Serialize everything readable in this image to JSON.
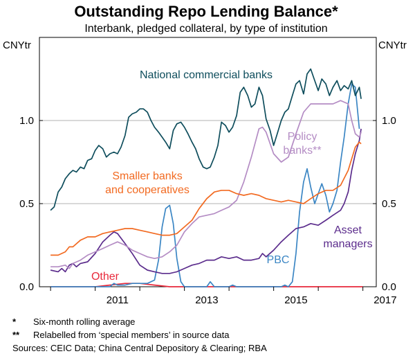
{
  "chart_data": {
    "type": "line",
    "title": "Outstanding Repo Lending Balance*",
    "subtitle": "Interbank, pledged collateral, by type of institution",
    "ylabel_left": "CNYtr",
    "ylabel_right": "CNYtr",
    "ylim": [
      0,
      1.5
    ],
    "xlim": [
      2009.75,
      2017.3
    ],
    "x_ticks": [
      "2011",
      "2013",
      "2015",
      "2017"
    ],
    "y_ticks": [
      "0.0",
      "0.5",
      "1.0"
    ],
    "grid": true,
    "series": [
      {
        "name": "National commercial banks",
        "label_lines": [
          "National commercial banks"
        ],
        "color": "#0e4d5c",
        "points": [
          [
            2010.0,
            0.46
          ],
          [
            2010.08,
            0.48
          ],
          [
            2010.17,
            0.57
          ],
          [
            2010.25,
            0.6
          ],
          [
            2010.33,
            0.65
          ],
          [
            2010.42,
            0.68
          ],
          [
            2010.5,
            0.7
          ],
          [
            2010.58,
            0.69
          ],
          [
            2010.67,
            0.72
          ],
          [
            2010.75,
            0.71
          ],
          [
            2010.83,
            0.76
          ],
          [
            2010.92,
            0.77
          ],
          [
            2011.0,
            0.82
          ],
          [
            2011.08,
            0.85
          ],
          [
            2011.17,
            0.83
          ],
          [
            2011.25,
            0.78
          ],
          [
            2011.33,
            0.8
          ],
          [
            2011.42,
            0.81
          ],
          [
            2011.5,
            0.8
          ],
          [
            2011.58,
            0.84
          ],
          [
            2011.67,
            0.91
          ],
          [
            2011.75,
            1.02
          ],
          [
            2011.83,
            1.04
          ],
          [
            2011.92,
            1.05
          ],
          [
            2012.0,
            1.07
          ],
          [
            2012.08,
            1.07
          ],
          [
            2012.17,
            1.05
          ],
          [
            2012.25,
            1.0
          ],
          [
            2012.33,
            0.96
          ],
          [
            2012.42,
            0.93
          ],
          [
            2012.5,
            0.9
          ],
          [
            2012.58,
            0.87
          ],
          [
            2012.67,
            0.83
          ],
          [
            2012.75,
            0.94
          ],
          [
            2012.83,
            0.98
          ],
          [
            2012.92,
            0.99
          ],
          [
            2013.0,
            0.96
          ],
          [
            2013.08,
            0.92
          ],
          [
            2013.17,
            0.87
          ],
          [
            2013.25,
            0.83
          ],
          [
            2013.33,
            0.77
          ],
          [
            2013.42,
            0.72
          ],
          [
            2013.5,
            0.71
          ],
          [
            2013.58,
            0.72
          ],
          [
            2013.67,
            0.78
          ],
          [
            2013.75,
            0.85
          ],
          [
            2013.83,
            0.99
          ],
          [
            2013.92,
            0.97
          ],
          [
            2014.0,
            0.93
          ],
          [
            2014.08,
            0.96
          ],
          [
            2014.17,
            1.03
          ],
          [
            2014.25,
            1.17
          ],
          [
            2014.33,
            1.2
          ],
          [
            2014.42,
            1.15
          ],
          [
            2014.5,
            1.08
          ],
          [
            2014.58,
            1.1
          ],
          [
            2014.67,
            1.2
          ],
          [
            2014.75,
            1.15
          ],
          [
            2014.83,
            1.01
          ],
          [
            2014.92,
            0.94
          ],
          [
            2015.0,
            0.85
          ],
          [
            2015.08,
            0.92
          ],
          [
            2015.17,
            1.0
          ],
          [
            2015.25,
            1.05
          ],
          [
            2015.33,
            1.07
          ],
          [
            2015.42,
            1.15
          ],
          [
            2015.5,
            1.22
          ],
          [
            2015.58,
            1.24
          ],
          [
            2015.67,
            1.16
          ],
          [
            2015.75,
            1.28
          ],
          [
            2015.83,
            1.31
          ],
          [
            2015.92,
            1.24
          ],
          [
            2016.0,
            1.18
          ],
          [
            2016.08,
            1.25
          ],
          [
            2016.17,
            1.22
          ],
          [
            2016.25,
            1.15
          ],
          [
            2016.33,
            1.2
          ],
          [
            2016.42,
            1.24
          ],
          [
            2016.5,
            1.18
          ],
          [
            2016.58,
            1.21
          ],
          [
            2016.67,
            1.19
          ],
          [
            2016.75,
            1.24
          ],
          [
            2016.83,
            1.15
          ],
          [
            2016.92,
            1.2
          ],
          [
            2016.96,
            1.13
          ]
        ]
      },
      {
        "name": "Smaller banks and cooperatives",
        "label_lines": [
          "Smaller banks",
          "and cooperatives"
        ],
        "color": "#f26a21",
        "points": [
          [
            2010.0,
            0.19
          ],
          [
            2010.17,
            0.19
          ],
          [
            2010.33,
            0.21
          ],
          [
            2010.42,
            0.24
          ],
          [
            2010.5,
            0.24
          ],
          [
            2010.67,
            0.28
          ],
          [
            2010.83,
            0.3
          ],
          [
            2011.0,
            0.3
          ],
          [
            2011.17,
            0.32
          ],
          [
            2011.33,
            0.33
          ],
          [
            2011.5,
            0.34
          ],
          [
            2011.67,
            0.35
          ],
          [
            2011.83,
            0.35
          ],
          [
            2012.0,
            0.34
          ],
          [
            2012.17,
            0.33
          ],
          [
            2012.33,
            0.32
          ],
          [
            2012.5,
            0.31
          ],
          [
            2012.67,
            0.31
          ],
          [
            2012.83,
            0.32
          ],
          [
            2013.0,
            0.36
          ],
          [
            2013.17,
            0.4
          ],
          [
            2013.33,
            0.47
          ],
          [
            2013.5,
            0.53
          ],
          [
            2013.67,
            0.57
          ],
          [
            2013.83,
            0.58
          ],
          [
            2014.0,
            0.58
          ],
          [
            2014.17,
            0.56
          ],
          [
            2014.33,
            0.55
          ],
          [
            2014.5,
            0.56
          ],
          [
            2014.67,
            0.55
          ],
          [
            2014.83,
            0.53
          ],
          [
            2015.0,
            0.52
          ],
          [
            2015.17,
            0.51
          ],
          [
            2015.33,
            0.52
          ],
          [
            2015.5,
            0.51
          ],
          [
            2015.67,
            0.5
          ],
          [
            2015.83,
            0.53
          ],
          [
            2016.0,
            0.56
          ],
          [
            2016.17,
            0.58
          ],
          [
            2016.33,
            0.58
          ],
          [
            2016.5,
            0.61
          ],
          [
            2016.67,
            0.7
          ],
          [
            2016.75,
            0.77
          ],
          [
            2016.83,
            0.84
          ],
          [
            2016.92,
            0.87
          ],
          [
            2016.96,
            0.86
          ]
        ]
      },
      {
        "name": "Policy banks**",
        "label_lines": [
          "Policy",
          "banks**"
        ],
        "color": "#b48cc4",
        "points": [
          [
            2010.0,
            0.12
          ],
          [
            2010.17,
            0.12
          ],
          [
            2010.33,
            0.13
          ],
          [
            2010.42,
            0.11
          ],
          [
            2010.5,
            0.14
          ],
          [
            2010.67,
            0.16
          ],
          [
            2010.83,
            0.19
          ],
          [
            2011.0,
            0.21
          ],
          [
            2011.17,
            0.23
          ],
          [
            2011.33,
            0.25
          ],
          [
            2011.5,
            0.27
          ],
          [
            2011.67,
            0.25
          ],
          [
            2011.83,
            0.22
          ],
          [
            2012.0,
            0.2
          ],
          [
            2012.17,
            0.18
          ],
          [
            2012.33,
            0.17
          ],
          [
            2012.5,
            0.18
          ],
          [
            2012.67,
            0.21
          ],
          [
            2012.83,
            0.25
          ],
          [
            2013.0,
            0.33
          ],
          [
            2013.17,
            0.38
          ],
          [
            2013.33,
            0.42
          ],
          [
            2013.5,
            0.43
          ],
          [
            2013.67,
            0.44
          ],
          [
            2013.83,
            0.46
          ],
          [
            2014.0,
            0.48
          ],
          [
            2014.17,
            0.52
          ],
          [
            2014.33,
            0.63
          ],
          [
            2014.5,
            0.78
          ],
          [
            2014.67,
            0.95
          ],
          [
            2014.75,
            0.96
          ],
          [
            2014.83,
            0.93
          ],
          [
            2015.0,
            0.8
          ],
          [
            2015.17,
            0.75
          ],
          [
            2015.33,
            0.78
          ],
          [
            2015.5,
            0.92
          ],
          [
            2015.67,
            1.05
          ],
          [
            2015.83,
            1.1
          ],
          [
            2016.0,
            1.1
          ],
          [
            2016.17,
            1.1
          ],
          [
            2016.33,
            1.1
          ],
          [
            2016.5,
            1.12
          ],
          [
            2016.67,
            1.1
          ],
          [
            2016.75,
            1.0
          ],
          [
            2016.83,
            0.92
          ],
          [
            2016.92,
            0.9
          ],
          [
            2016.96,
            0.93
          ]
        ]
      },
      {
        "name": "Asset managers",
        "label_lines": [
          "Asset",
          "managers"
        ],
        "color": "#5b2c8c",
        "points": [
          [
            2010.0,
            0.1
          ],
          [
            2010.17,
            0.09
          ],
          [
            2010.25,
            0.11
          ],
          [
            2010.33,
            0.09
          ],
          [
            2010.42,
            0.13
          ],
          [
            2010.5,
            0.14
          ],
          [
            2010.58,
            0.12
          ],
          [
            2010.67,
            0.14
          ],
          [
            2010.83,
            0.15
          ],
          [
            2011.0,
            0.2
          ],
          [
            2011.17,
            0.27
          ],
          [
            2011.33,
            0.31
          ],
          [
            2011.42,
            0.33
          ],
          [
            2011.5,
            0.32
          ],
          [
            2011.67,
            0.26
          ],
          [
            2011.83,
            0.2
          ],
          [
            2012.0,
            0.13
          ],
          [
            2012.17,
            0.1
          ],
          [
            2012.33,
            0.09
          ],
          [
            2012.5,
            0.08
          ],
          [
            2012.67,
            0.08
          ],
          [
            2012.83,
            0.09
          ],
          [
            2013.0,
            0.11
          ],
          [
            2013.17,
            0.13
          ],
          [
            2013.33,
            0.14
          ],
          [
            2013.5,
            0.16
          ],
          [
            2013.67,
            0.16
          ],
          [
            2013.83,
            0.18
          ],
          [
            2014.0,
            0.17
          ],
          [
            2014.17,
            0.18
          ],
          [
            2014.33,
            0.16
          ],
          [
            2014.5,
            0.16
          ],
          [
            2014.67,
            0.17
          ],
          [
            2014.75,
            0.2
          ],
          [
            2014.83,
            0.18
          ],
          [
            2015.0,
            0.22
          ],
          [
            2015.17,
            0.27
          ],
          [
            2015.33,
            0.31
          ],
          [
            2015.5,
            0.35
          ],
          [
            2015.67,
            0.36
          ],
          [
            2015.83,
            0.38
          ],
          [
            2016.0,
            0.37
          ],
          [
            2016.17,
            0.4
          ],
          [
            2016.33,
            0.43
          ],
          [
            2016.5,
            0.46
          ],
          [
            2016.58,
            0.5
          ],
          [
            2016.67,
            0.57
          ],
          [
            2016.75,
            0.7
          ],
          [
            2016.83,
            0.8
          ],
          [
            2016.92,
            0.88
          ],
          [
            2016.96,
            0.95
          ]
        ]
      },
      {
        "name": "PBC",
        "label_lines": [
          "PBC"
        ],
        "color": "#3b86c4",
        "points": [
          [
            2010.0,
            0.0
          ],
          [
            2011.33,
            0.0
          ],
          [
            2011.42,
            0.02
          ],
          [
            2011.5,
            0.01
          ],
          [
            2011.67,
            0.01
          ],
          [
            2011.83,
            0.02
          ],
          [
            2012.0,
            0.02
          ],
          [
            2012.17,
            0.02
          ],
          [
            2012.33,
            0.04
          ],
          [
            2012.42,
            0.16
          ],
          [
            2012.5,
            0.36
          ],
          [
            2012.58,
            0.47
          ],
          [
            2012.67,
            0.49
          ],
          [
            2012.75,
            0.38
          ],
          [
            2012.83,
            0.17
          ],
          [
            2012.92,
            0.03
          ],
          [
            2013.0,
            0.0
          ],
          [
            2013.5,
            0.0
          ],
          [
            2013.58,
            0.03
          ],
          [
            2013.67,
            0.0
          ],
          [
            2014.0,
            0.0
          ],
          [
            2014.08,
            0.01
          ],
          [
            2014.17,
            0.0
          ],
          [
            2015.0,
            0.0
          ],
          [
            2015.17,
            0.0
          ],
          [
            2015.25,
            0.01
          ],
          [
            2015.33,
            0.0
          ],
          [
            2015.42,
            0.03
          ],
          [
            2015.5,
            0.2
          ],
          [
            2015.58,
            0.45
          ],
          [
            2015.67,
            0.63
          ],
          [
            2015.75,
            0.71
          ],
          [
            2015.83,
            0.6
          ],
          [
            2015.92,
            0.5
          ],
          [
            2016.0,
            0.56
          ],
          [
            2016.08,
            0.62
          ],
          [
            2016.17,
            0.55
          ],
          [
            2016.25,
            0.45
          ],
          [
            2016.33,
            0.5
          ],
          [
            2016.42,
            0.58
          ],
          [
            2016.5,
            0.75
          ],
          [
            2016.58,
            0.9
          ],
          [
            2016.67,
            1.1
          ],
          [
            2016.75,
            1.22
          ],
          [
            2016.83,
            1.2
          ],
          [
            2016.92,
            0.95
          ]
        ]
      },
      {
        "name": "Other",
        "label_lines": [
          "Other"
        ],
        "color": "#e8283a",
        "points": [
          [
            2010.0,
            0.0
          ],
          [
            2011.0,
            0.0
          ],
          [
            2011.33,
            0.01
          ],
          [
            2011.67,
            0.02
          ],
          [
            2012.0,
            0.02
          ],
          [
            2012.33,
            0.01
          ],
          [
            2012.67,
            0.0
          ],
          [
            2017.0,
            0.0
          ]
        ]
      }
    ]
  },
  "footnotes": [
    {
      "mark": "*",
      "text": "Six-month rolling average"
    },
    {
      "mark": "**",
      "text": "Relabelled from ‘special members’ in source data"
    }
  ],
  "sources": "Sources: CEIC Data; China Central Depository & Clearing; RBA"
}
